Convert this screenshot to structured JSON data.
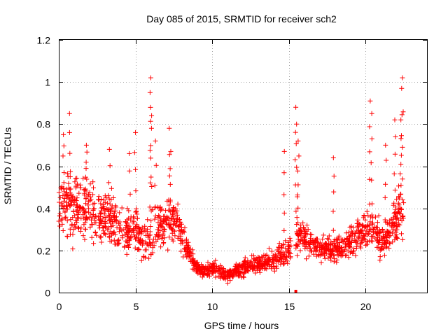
{
  "chart_data": {
    "type": "scatter",
    "title": "Day 085 of 2015, SRMTID for receiver sch2",
    "xlabel": "GPS time / hours",
    "ylabel": "SRMTID / TECUs",
    "xlim": [
      0,
      24
    ],
    "ylim": [
      0,
      1.2
    ],
    "xticks": [
      0,
      5,
      10,
      15,
      20
    ],
    "yticks": [
      0,
      0.2,
      0.4,
      0.6,
      0.8,
      1,
      1.2
    ],
    "xtick_labels": [
      "0",
      "5",
      "10",
      "15",
      "20"
    ],
    "ytick_labels": [
      "0",
      "0.2",
      "0.4",
      "0.6",
      "0.8",
      "1",
      "1.2"
    ],
    "grid": true,
    "marker": "+",
    "color": "#ff0000",
    "envelope": {
      "x": [
        0,
        0.5,
        1,
        1.5,
        2,
        2.5,
        3,
        3.5,
        4,
        4.5,
        5,
        5.5,
        6,
        6.5,
        7,
        7.5,
        8,
        8.5,
        9,
        9.5,
        10,
        10.5,
        11,
        11.5,
        12,
        12.5,
        13,
        13.5,
        14,
        14.5,
        15,
        15.5,
        16,
        16.5,
        17,
        17.5,
        18,
        18.5,
        19,
        19.5,
        20,
        20.5,
        21,
        21.5,
        22,
        22.5
      ],
      "y": [
        0.4,
        0.42,
        0.38,
        0.42,
        0.4,
        0.38,
        0.36,
        0.34,
        0.3,
        0.28,
        0.3,
        0.24,
        0.26,
        0.3,
        0.32,
        0.36,
        0.28,
        0.18,
        0.12,
        0.1,
        0.12,
        0.1,
        0.08,
        0.1,
        0.12,
        0.14,
        0.13,
        0.14,
        0.15,
        0.18,
        0.2,
        0.26,
        0.26,
        0.22,
        0.2,
        0.22,
        0.2,
        0.22,
        0.25,
        0.28,
        0.3,
        0.3,
        0.25,
        0.28,
        0.35,
        0.4
      ],
      "spread": [
        0.12,
        0.14,
        0.14,
        0.14,
        0.13,
        0.13,
        0.12,
        0.11,
        0.1,
        0.1,
        0.1,
        0.09,
        0.1,
        0.1,
        0.1,
        0.1,
        0.08,
        0.05,
        0.03,
        0.03,
        0.03,
        0.03,
        0.03,
        0.03,
        0.04,
        0.04,
        0.04,
        0.04,
        0.05,
        0.06,
        0.06,
        0.07,
        0.07,
        0.06,
        0.05,
        0.06,
        0.06,
        0.06,
        0.07,
        0.08,
        0.08,
        0.09,
        0.08,
        0.08,
        0.1,
        0.12
      ]
    },
    "peaks": [
      {
        "x": 0.7,
        "y": 0.85
      },
      {
        "x": 0.3,
        "y": 0.75
      },
      {
        "x": 1.8,
        "y": 0.7
      },
      {
        "x": 3.3,
        "y": 0.68
      },
      {
        "x": 4.6,
        "y": 0.66
      },
      {
        "x": 5.0,
        "y": 0.76
      },
      {
        "x": 6.0,
        "y": 1.02
      },
      {
        "x": 5.95,
        "y": 0.95
      },
      {
        "x": 6.05,
        "y": 0.84
      },
      {
        "x": 6.3,
        "y": 0.72
      },
      {
        "x": 7.2,
        "y": 0.78
      },
      {
        "x": 7.3,
        "y": 0.67
      },
      {
        "x": 14.7,
        "y": 0.67
      },
      {
        "x": 15.45,
        "y": 0.88
      },
      {
        "x": 15.5,
        "y": 0.8
      },
      {
        "x": 15.6,
        "y": 0.72
      },
      {
        "x": 17.9,
        "y": 0.64
      },
      {
        "x": 20.3,
        "y": 0.91
      },
      {
        "x": 20.4,
        "y": 0.85
      },
      {
        "x": 21.3,
        "y": 0.7
      },
      {
        "x": 21.9,
        "y": 0.82
      },
      {
        "x": 22.4,
        "y": 1.02
      },
      {
        "x": 22.35,
        "y": 0.97
      },
      {
        "x": 22.3,
        "y": 0.82
      }
    ],
    "outliers": [
      {
        "x": 15.45,
        "y": 0.0
      }
    ]
  }
}
